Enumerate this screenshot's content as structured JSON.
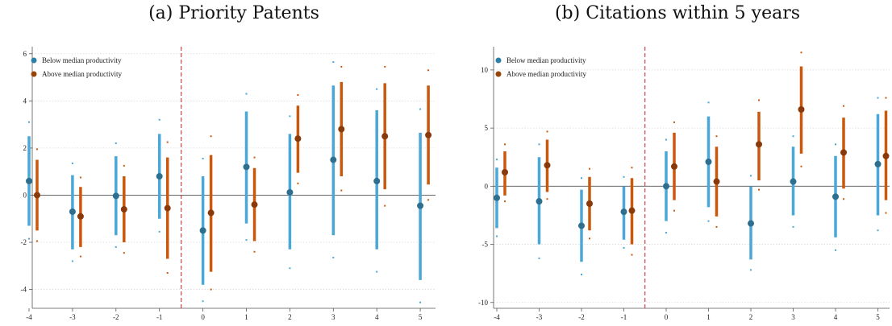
{
  "chart_data": [
    {
      "type": "scatter",
      "title": "(a) Priority Patents",
      "categories": [
        "-4",
        "-3",
        "-2",
        "-1",
        "0",
        "1",
        "2",
        "3",
        "4",
        "5"
      ],
      "ylim": [
        -4.8,
        6.3
      ],
      "yticks": [
        -4,
        -2,
        0,
        2,
        4,
        6
      ],
      "grid": true,
      "legend_placement": "top-left",
      "event_line": "dashed red line between -1 and 0",
      "series": [
        {
          "name": "Below median productivity",
          "color": "#4aa8d8",
          "points": [
            {
              "x": "-4",
              "y": 0.6,
              "ci90": [
                -1.3,
                2.5
              ],
              "ci95": [
                -1.85,
                3.1
              ]
            },
            {
              "x": "-3",
              "y": -0.7,
              "ci90": [
                -2.3,
                0.85
              ],
              "ci95": [
                -2.8,
                1.35
              ]
            },
            {
              "x": "-2",
              "y": -0.03,
              "ci90": [
                -1.7,
                1.65
              ],
              "ci95": [
                -2.2,
                2.2
              ]
            },
            {
              "x": "-1",
              "y": 0.8,
              "ci90": [
                -1.0,
                2.6
              ],
              "ci95": [
                -1.55,
                3.2
              ]
            },
            {
              "x": "0",
              "y": -1.5,
              "ci90": [
                -3.8,
                0.8
              ],
              "ci95": [
                -4.5,
                1.55
              ]
            },
            {
              "x": "1",
              "y": 1.2,
              "ci90": [
                -1.2,
                3.55
              ],
              "ci95": [
                -1.9,
                4.3
              ]
            },
            {
              "x": "2",
              "y": 0.12,
              "ci90": [
                -2.3,
                2.6
              ],
              "ci95": [
                -3.1,
                3.35
              ]
            },
            {
              "x": "3",
              "y": 1.5,
              "ci90": [
                -1.7,
                4.65
              ],
              "ci95": [
                -2.65,
                5.65
              ]
            },
            {
              "x": "4",
              "y": 0.6,
              "ci90": [
                -2.3,
                3.6
              ],
              "ci95": [
                -3.25,
                4.5
              ]
            },
            {
              "x": "5",
              "y": -0.45,
              "ci90": [
                -3.6,
                2.65
              ],
              "ci95": [
                -4.55,
                3.65
              ]
            }
          ]
        },
        {
          "name": "Above median productivity",
          "color": "#c9580c",
          "points": [
            {
              "x": "-4",
              "y": 0.0,
              "ci90": [
                -1.5,
                1.5
              ],
              "ci95": [
                -1.95,
                1.95
              ]
            },
            {
              "x": "-3",
              "y": -0.9,
              "ci90": [
                -2.2,
                0.35
              ],
              "ci95": [
                -2.6,
                0.75
              ]
            },
            {
              "x": "-2",
              "y": -0.6,
              "ci90": [
                -2.0,
                0.8
              ],
              "ci95": [
                -2.45,
                1.25
              ]
            },
            {
              "x": "-1",
              "y": -0.55,
              "ci90": [
                -2.7,
                1.6
              ],
              "ci95": [
                -3.3,
                2.25
              ]
            },
            {
              "x": "0",
              "y": -0.75,
              "ci90": [
                -3.25,
                1.7
              ],
              "ci95": [
                -4.0,
                2.5
              ]
            },
            {
              "x": "1",
              "y": -0.4,
              "ci90": [
                -1.95,
                1.15
              ],
              "ci95": [
                -2.4,
                1.6
              ]
            },
            {
              "x": "2",
              "y": 2.4,
              "ci90": [
                0.95,
                3.8
              ],
              "ci95": [
                0.5,
                4.25
              ]
            },
            {
              "x": "3",
              "y": 2.8,
              "ci90": [
                0.8,
                4.8
              ],
              "ci95": [
                0.2,
                5.45
              ]
            },
            {
              "x": "4",
              "y": 2.5,
              "ci90": [
                0.25,
                4.75
              ],
              "ci95": [
                -0.45,
                5.45
              ]
            },
            {
              "x": "5",
              "y": 2.55,
              "ci90": [
                0.45,
                4.65
              ],
              "ci95": [
                -0.2,
                5.3
              ]
            }
          ]
        }
      ]
    },
    {
      "type": "scatter",
      "title": "(b) Citations within 5 years",
      "categories": [
        "-4",
        "-3",
        "-2",
        "-1",
        "0",
        "1",
        "2",
        "3",
        "4",
        "5"
      ],
      "ylim": [
        -10.5,
        12
      ],
      "yticks": [
        -10,
        -5,
        0,
        5,
        10
      ],
      "grid": true,
      "legend_placement": "top-left",
      "event_line": "dashed red line between -1 and 0",
      "series": [
        {
          "name": "Below median productivity",
          "color": "#4aa8d8",
          "points": [
            {
              "x": "-4",
              "y": -1.0,
              "ci90": [
                -3.6,
                1.6
              ],
              "ci95": [
                -4.3,
                2.3
              ]
            },
            {
              "x": "-3",
              "y": -1.3,
              "ci90": [
                -5.0,
                2.5
              ],
              "ci95": [
                -6.2,
                3.6
              ]
            },
            {
              "x": "-2",
              "y": -3.4,
              "ci90": [
                -6.5,
                -0.3
              ],
              "ci95": [
                -7.6,
                0.7
              ]
            },
            {
              "x": "-1",
              "y": -2.2,
              "ci90": [
                -4.6,
                0.0
              ],
              "ci95": [
                -5.3,
                0.8
              ]
            },
            {
              "x": "0",
              "y": 0.0,
              "ci90": [
                -3.0,
                3.0
              ],
              "ci95": [
                -4.0,
                4.0
              ]
            },
            {
              "x": "1",
              "y": 2.1,
              "ci90": [
                -1.8,
                6.0
              ],
              "ci95": [
                -3.0,
                7.2
              ]
            },
            {
              "x": "2",
              "y": -3.2,
              "ci90": [
                -6.3,
                0.0
              ],
              "ci95": [
                -7.2,
                0.9
              ]
            },
            {
              "x": "3",
              "y": 0.4,
              "ci90": [
                -2.5,
                3.4
              ],
              "ci95": [
                -3.5,
                4.3
              ]
            },
            {
              "x": "4",
              "y": -0.9,
              "ci90": [
                -4.4,
                2.6
              ],
              "ci95": [
                -5.5,
                3.6
              ]
            },
            {
              "x": "5",
              "y": 1.9,
              "ci90": [
                -2.5,
                6.2
              ],
              "ci95": [
                -3.8,
                7.6
              ]
            }
          ]
        },
        {
          "name": "Above median productivity",
          "color": "#c9580c",
          "points": [
            {
              "x": "-4",
              "y": 1.2,
              "ci90": [
                -0.8,
                3.0
              ],
              "ci95": [
                -1.3,
                3.6
              ]
            },
            {
              "x": "-3",
              "y": 1.8,
              "ci90": [
                -0.5,
                4.0
              ],
              "ci95": [
                -1.1,
                4.7
              ]
            },
            {
              "x": "-2",
              "y": -1.5,
              "ci90": [
                -3.8,
                0.8
              ],
              "ci95": [
                -4.5,
                1.5
              ]
            },
            {
              "x": "-1",
              "y": -2.1,
              "ci90": [
                -5.0,
                0.7
              ],
              "ci95": [
                -5.9,
                1.6
              ]
            },
            {
              "x": "0",
              "y": 1.7,
              "ci90": [
                -1.2,
                4.6
              ],
              "ci95": [
                -2.1,
                5.5
              ]
            },
            {
              "x": "1",
              "y": 0.4,
              "ci90": [
                -2.6,
                3.4
              ],
              "ci95": [
                -3.5,
                4.3
              ]
            },
            {
              "x": "2",
              "y": 3.6,
              "ci90": [
                0.5,
                6.4
              ],
              "ci95": [
                -0.3,
                7.4
              ]
            },
            {
              "x": "3",
              "y": 6.6,
              "ci90": [
                2.8,
                10.3
              ],
              "ci95": [
                1.7,
                11.5
              ]
            },
            {
              "x": "4",
              "y": 2.9,
              "ci90": [
                -0.2,
                5.9
              ],
              "ci95": [
                -1.1,
                6.9
              ]
            },
            {
              "x": "5",
              "y": 2.6,
              "ci90": [
                -1.2,
                6.5
              ],
              "ci95": [
                -2.3,
                7.6
              ]
            }
          ]
        }
      ]
    }
  ]
}
